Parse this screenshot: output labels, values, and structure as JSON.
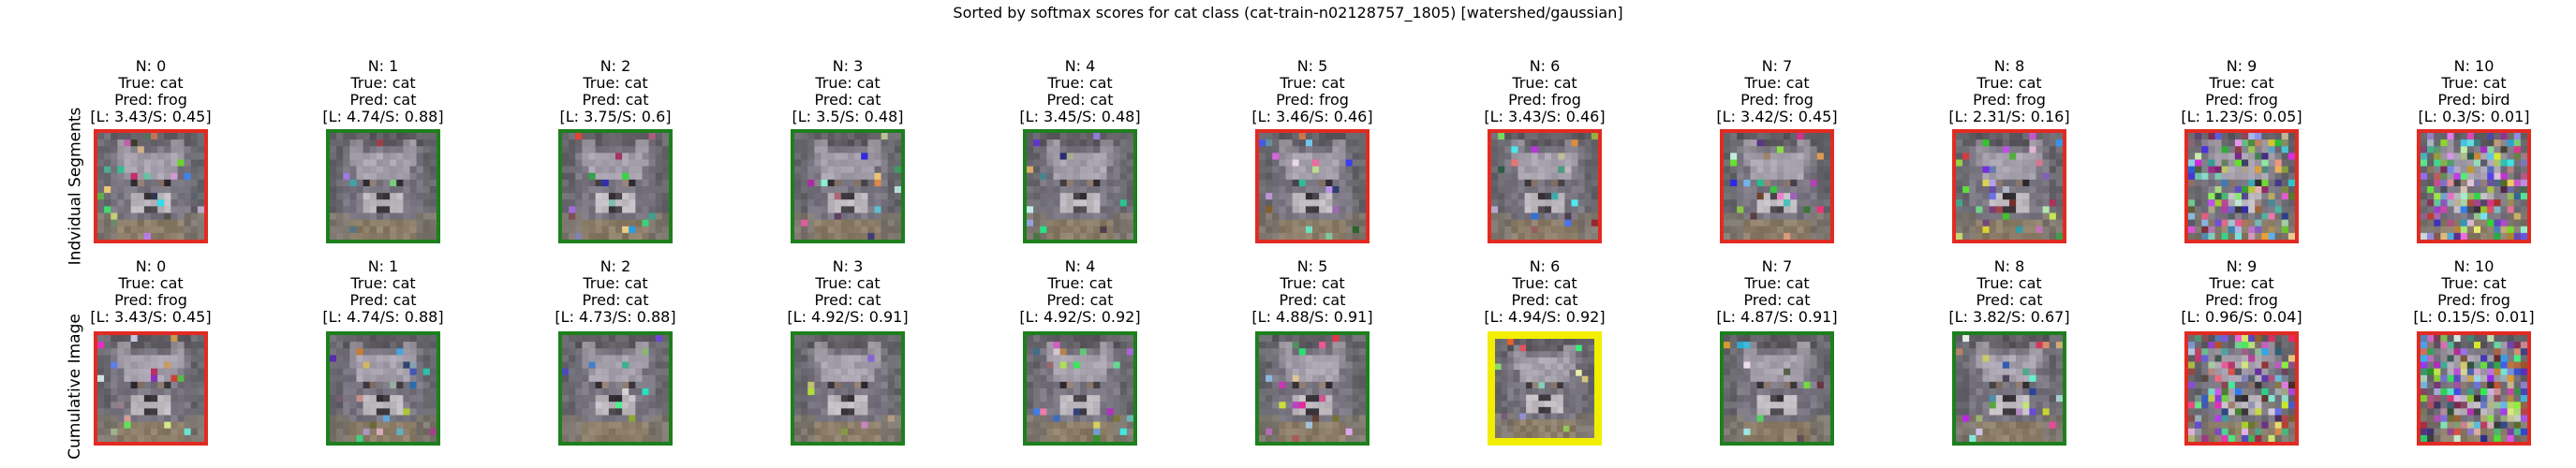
{
  "title": "Sorted by softmax scores for cat class (cat-train-n02128757_1805) [watershed/gaussian]",
  "colors": {
    "correct": "#1d7f1d",
    "wrong": "#e12b22",
    "highlight": "#f2ee00"
  },
  "chart_data": {
    "type": "image-grid",
    "title": "Sorted by softmax scores for cat class (cat-train-n02128757_1805) [watershed/gaussian]",
    "rows": [
      {
        "label": "Indvidual Segments",
        "panels": [
          {
            "n": "N: 0",
            "true": "True: cat",
            "pred": "Pred: frog",
            "score": "[L: 3.43/S: 0.45]",
            "border": "red",
            "noise": 0.08
          },
          {
            "n": "N: 1",
            "true": "True: cat",
            "pred": "Pred: cat",
            "score": "[L: 4.74/S: 0.88]",
            "border": "green",
            "noise": 0.05
          },
          {
            "n": "N: 2",
            "true": "True: cat",
            "pred": "Pred: cat",
            "score": "[L: 3.75/S: 0.6]",
            "border": "green",
            "noise": 0.06
          },
          {
            "n": "N: 3",
            "true": "True: cat",
            "pred": "Pred: cat",
            "score": "[L: 3.5/S: 0.48]",
            "border": "green",
            "noise": 0.06
          },
          {
            "n": "N: 4",
            "true": "True: cat",
            "pred": "Pred: cat",
            "score": "[L: 3.45/S: 0.48]",
            "border": "green",
            "noise": 0.06
          },
          {
            "n": "N: 5",
            "true": "True: cat",
            "pred": "Pred: frog",
            "score": "[L: 3.46/S: 0.46]",
            "border": "red",
            "noise": 0.07
          },
          {
            "n": "N: 6",
            "true": "True: cat",
            "pred": "Pred: frog",
            "score": "[L: 3.43/S: 0.46]",
            "border": "red",
            "noise": 0.07
          },
          {
            "n": "N: 7",
            "true": "True: cat",
            "pred": "Pred: frog",
            "score": "[L: 3.42/S: 0.45]",
            "border": "red",
            "noise": 0.08
          },
          {
            "n": "N: 8",
            "true": "True: cat",
            "pred": "Pred: frog",
            "score": "[L: 2.31/S: 0.16]",
            "border": "red",
            "noise": 0.15
          },
          {
            "n": "N: 9",
            "true": "True: cat",
            "pred": "Pred: frog",
            "score": "[L: 1.23/S: 0.05]",
            "border": "red",
            "noise": 0.45
          },
          {
            "n": "N: 10",
            "true": "True: cat",
            "pred": "Pred: bird",
            "score": "[L: 0.3/S: 0.01]",
            "border": "red",
            "noise": 0.55
          }
        ]
      },
      {
        "label": "Cumulative Image",
        "panels": [
          {
            "n": "N: 0",
            "true": "True: cat",
            "pred": "Pred: frog",
            "score": "[L: 3.43/S: 0.45]",
            "border": "red",
            "noise": 0.08
          },
          {
            "n": "N: 1",
            "true": "True: cat",
            "pred": "Pred: cat",
            "score": "[L: 4.74/S: 0.88]",
            "border": "green",
            "noise": 0.05
          },
          {
            "n": "N: 2",
            "true": "True: cat",
            "pred": "Pred: cat",
            "score": "[L: 4.73/S: 0.88]",
            "border": "green",
            "noise": 0.05
          },
          {
            "n": "N: 3",
            "true": "True: cat",
            "pred": "Pred: cat",
            "score": "[L: 4.92/S: 0.91]",
            "border": "green",
            "noise": 0.05
          },
          {
            "n": "N: 4",
            "true": "True: cat",
            "pred": "Pred: cat",
            "score": "[L: 4.92/S: 0.92]",
            "border": "green",
            "noise": 0.05
          },
          {
            "n": "N: 5",
            "true": "True: cat",
            "pred": "Pred: cat",
            "score": "[L: 4.88/S: 0.91]",
            "border": "green",
            "noise": 0.05
          },
          {
            "n": "N: 6",
            "true": "True: cat",
            "pred": "Pred: cat",
            "score": "[L: 4.94/S: 0.92]",
            "border": "yellow",
            "noise": 0.05
          },
          {
            "n": "N: 7",
            "true": "True: cat",
            "pred": "Pred: cat",
            "score": "[L: 4.87/S: 0.91]",
            "border": "green",
            "noise": 0.06
          },
          {
            "n": "N: 8",
            "true": "True: cat",
            "pred": "Pred: cat",
            "score": "[L: 3.82/S: 0.67]",
            "border": "green",
            "noise": 0.12
          },
          {
            "n": "N: 9",
            "true": "True: cat",
            "pred": "Pred: frog",
            "score": "[L: 0.96/S: 0.04]",
            "border": "red",
            "noise": 0.45
          },
          {
            "n": "N: 10",
            "true": "True: cat",
            "pred": "Pred: frog",
            "score": "[L: 0.15/S: 0.01]",
            "border": "red",
            "noise": 0.6
          }
        ]
      }
    ]
  }
}
